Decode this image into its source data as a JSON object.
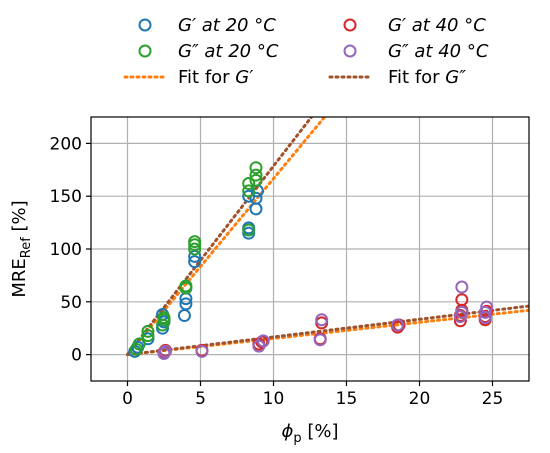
{
  "chart_data": {
    "type": "scatter",
    "title": "",
    "xlabel_sym": "ϕ",
    "xlabel_sub": "p",
    "xlabel_unit": "[%]",
    "ylabel_main": "MRE",
    "ylabel_sub": "Ref",
    "ylabel_unit": "[%]",
    "xlim": [
      -2.5,
      27.5
    ],
    "ylim": [
      -25,
      225
    ],
    "xticks": [
      "0",
      "5",
      "10",
      "15",
      "20",
      "25"
    ],
    "yticks": [
      "0",
      "50",
      "100",
      "150",
      "200"
    ],
    "grid": true,
    "legend_position": "top",
    "series": [
      {
        "name": "G′ at 20 °C",
        "legend_sym": "G′",
        "legend_rest": " at 20 °C",
        "color": "#1f77b4",
        "marker": "open-circle",
        "points": [
          [
            0.5,
            3
          ],
          [
            0.7,
            7
          ],
          [
            1.4,
            15
          ],
          [
            2.4,
            25
          ],
          [
            2.5,
            31
          ],
          [
            2.4,
            38
          ],
          [
            3.9,
            37
          ],
          [
            4.0,
            48
          ],
          [
            4.0,
            53
          ],
          [
            4.6,
            88
          ],
          [
            4.6,
            93
          ],
          [
            8.3,
            115
          ],
          [
            8.3,
            120
          ],
          [
            8.8,
            138
          ],
          [
            8.8,
            148
          ],
          [
            8.9,
            155
          ],
          [
            8.3,
            150
          ]
        ]
      },
      {
        "name": "G″ at 20 °C",
        "legend_sym": "G″",
        "legend_rest": " at 20 °C",
        "color": "#2ca02c",
        "marker": "open-circle",
        "points": [
          [
            0.6,
            5
          ],
          [
            0.8,
            10
          ],
          [
            1.4,
            18
          ],
          [
            1.4,
            22
          ],
          [
            2.4,
            28
          ],
          [
            2.5,
            33
          ],
          [
            2.5,
            35
          ],
          [
            4.0,
            63
          ],
          [
            4.0,
            65
          ],
          [
            4.6,
            100
          ],
          [
            4.6,
            104
          ],
          [
            4.6,
            107
          ],
          [
            8.3,
            118
          ],
          [
            8.3,
            155
          ],
          [
            8.3,
            162
          ],
          [
            8.8,
            165
          ],
          [
            8.8,
            170
          ],
          [
            8.8,
            177
          ]
        ]
      },
      {
        "name": "G′ at 40 °C",
        "legend_sym": "G′",
        "legend_rest": " at 40 °C",
        "color": "#d62728",
        "marker": "open-circle",
        "points": [
          [
            2.5,
            2
          ],
          [
            2.6,
            4
          ],
          [
            5.1,
            4
          ],
          [
            9.0,
            10
          ],
          [
            9.2,
            12
          ],
          [
            13.2,
            15
          ],
          [
            13.3,
            30
          ],
          [
            18.5,
            26
          ],
          [
            18.6,
            28
          ],
          [
            22.8,
            32
          ],
          [
            22.8,
            37
          ],
          [
            22.9,
            42
          ],
          [
            22.9,
            52
          ],
          [
            24.5,
            33
          ],
          [
            24.5,
            36
          ],
          [
            24.6,
            41
          ]
        ]
      },
      {
        "name": "G″ at 40 °C",
        "legend_sym": "G″",
        "legend_rest": " at 40 °C",
        "color": "#9467bd",
        "marker": "open-circle",
        "points": [
          [
            2.5,
            1
          ],
          [
            2.6,
            3
          ],
          [
            5.1,
            3
          ],
          [
            9.0,
            8
          ],
          [
            9.3,
            13
          ],
          [
            13.2,
            14
          ],
          [
            13.3,
            33
          ],
          [
            18.5,
            28
          ],
          [
            22.8,
            36
          ],
          [
            22.9,
            40
          ],
          [
            22.9,
            64
          ],
          [
            24.5,
            35
          ],
          [
            24.5,
            40
          ],
          [
            24.6,
            45
          ]
        ]
      }
    ],
    "fits": [
      {
        "name": "Fit for G′",
        "legend_plain": "Fit for ",
        "legend_sym": "G′",
        "color": "#ff7f0e",
        "style": "dotted",
        "lines": [
          {
            "x": [
              0,
              13.5
            ],
            "y": [
              0,
              225
            ]
          },
          {
            "x": [
              0,
              27.5
            ],
            "y": [
              0,
              42
            ]
          }
        ]
      },
      {
        "name": "Fit for G″",
        "legend_plain": "Fit for ",
        "legend_sym": "G″",
        "color": "#a0522d",
        "style": "dotted",
        "lines": [
          {
            "x": [
              0,
              12.6
            ],
            "y": [
              0,
              225
            ]
          },
          {
            "x": [
              0,
              27.5
            ],
            "y": [
              0,
              46
            ]
          }
        ]
      }
    ]
  }
}
